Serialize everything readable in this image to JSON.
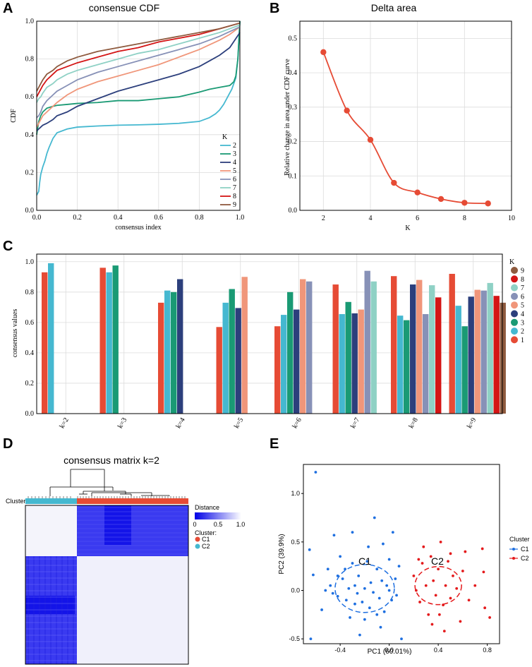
{
  "panels": {
    "a": "A",
    "b": "B",
    "c": "C",
    "d": "D",
    "e": "E"
  },
  "colors": {
    "k2": "#45b8d0",
    "k3": "#1a9a74",
    "k4": "#2c3f7c",
    "k5": "#f0967a",
    "k6": "#8791b7",
    "k7": "#8fd1c5",
    "k8": "#d41515",
    "k9": "#8e5a3e",
    "orange": "#e64b35",
    "c1": "#1e6fe0",
    "c2": "#e41a1c",
    "heat": "#1414e8"
  },
  "chart_data": [
    {
      "id": "cdf",
      "type": "line",
      "title": "consensue CDF",
      "xlabel": "consensus index",
      "ylabel": "CDF",
      "xlim": [
        0,
        1
      ],
      "ylim": [
        0,
        1
      ],
      "xticks": [
        "0.0",
        "0.2",
        "0.4",
        "0.6",
        "0.8",
        "1.0"
      ],
      "yticks": [
        "0.0",
        "0.2",
        "0.4",
        "0.6",
        "0.8",
        "1.0"
      ],
      "legend_title": "K",
      "series": [
        {
          "name": "2",
          "x": [
            0,
            0.005,
            0.01,
            0.015,
            0.02,
            0.03,
            0.04,
            0.05,
            0.06,
            0.08,
            0.1,
            0.15,
            0.2,
            0.3,
            0.4,
            0.5,
            0.6,
            0.7,
            0.8,
            0.85,
            0.88,
            0.9,
            0.92,
            0.94,
            0.95,
            0.96,
            0.97,
            0.98,
            0.99,
            1.0
          ],
          "y": [
            0.08,
            0.09,
            0.1,
            0.15,
            0.19,
            0.23,
            0.26,
            0.3,
            0.33,
            0.38,
            0.41,
            0.43,
            0.44,
            0.446,
            0.45,
            0.452,
            0.455,
            0.46,
            0.47,
            0.49,
            0.51,
            0.53,
            0.56,
            0.6,
            0.62,
            0.64,
            0.67,
            0.7,
            0.8,
            1.0
          ]
        },
        {
          "name": "3",
          "x": [
            0,
            0.01,
            0.02,
            0.03,
            0.05,
            0.08,
            0.1,
            0.15,
            0.2,
            0.3,
            0.4,
            0.5,
            0.6,
            0.7,
            0.8,
            0.85,
            0.9,
            0.95,
            0.97,
            0.98,
            0.99,
            1.0
          ],
          "y": [
            0.4,
            0.47,
            0.5,
            0.52,
            0.54,
            0.55,
            0.555,
            0.56,
            0.565,
            0.57,
            0.58,
            0.58,
            0.59,
            0.6,
            0.625,
            0.64,
            0.65,
            0.66,
            0.68,
            0.71,
            0.8,
            1.0
          ]
        },
        {
          "name": "4",
          "x": [
            0,
            0.01,
            0.02,
            0.03,
            0.05,
            0.08,
            0.1,
            0.15,
            0.2,
            0.3,
            0.4,
            0.5,
            0.6,
            0.7,
            0.8,
            0.85,
            0.9,
            0.95,
            1.0
          ],
          "y": [
            0.42,
            0.43,
            0.44,
            0.45,
            0.46,
            0.48,
            0.5,
            0.52,
            0.55,
            0.59,
            0.63,
            0.66,
            0.69,
            0.72,
            0.76,
            0.79,
            0.82,
            0.86,
            0.94
          ]
        },
        {
          "name": "5",
          "x": [
            0,
            0.01,
            0.02,
            0.03,
            0.05,
            0.08,
            0.1,
            0.15,
            0.2,
            0.3,
            0.4,
            0.5,
            0.6,
            0.7,
            0.8,
            0.9,
            0.95,
            1.0
          ],
          "y": [
            0.44,
            0.46,
            0.48,
            0.5,
            0.52,
            0.55,
            0.57,
            0.61,
            0.64,
            0.68,
            0.71,
            0.74,
            0.77,
            0.81,
            0.85,
            0.9,
            0.93,
            0.97
          ]
        },
        {
          "name": "6",
          "x": [
            0,
            0.01,
            0.02,
            0.03,
            0.05,
            0.08,
            0.1,
            0.15,
            0.2,
            0.3,
            0.4,
            0.5,
            0.6,
            0.7,
            0.8,
            0.9,
            1.0
          ],
          "y": [
            0.49,
            0.5,
            0.52,
            0.55,
            0.58,
            0.61,
            0.63,
            0.66,
            0.69,
            0.73,
            0.76,
            0.79,
            0.82,
            0.85,
            0.88,
            0.92,
            0.97
          ]
        },
        {
          "name": "7",
          "x": [
            0,
            0.01,
            0.02,
            0.03,
            0.05,
            0.08,
            0.1,
            0.15,
            0.2,
            0.3,
            0.4,
            0.5,
            0.6,
            0.7,
            0.8,
            0.9,
            1.0
          ],
          "y": [
            0.57,
            0.59,
            0.6,
            0.62,
            0.65,
            0.67,
            0.69,
            0.72,
            0.74,
            0.77,
            0.8,
            0.83,
            0.85,
            0.88,
            0.91,
            0.94,
            0.98
          ]
        },
        {
          "name": "8",
          "x": [
            0,
            0.01,
            0.02,
            0.03,
            0.05,
            0.08,
            0.1,
            0.15,
            0.2,
            0.3,
            0.4,
            0.5,
            0.6,
            0.7,
            0.8,
            0.9,
            1.0
          ],
          "y": [
            0.6,
            0.62,
            0.64,
            0.66,
            0.69,
            0.72,
            0.74,
            0.76,
            0.78,
            0.81,
            0.84,
            0.86,
            0.89,
            0.91,
            0.93,
            0.96,
            0.99
          ]
        },
        {
          "name": "9",
          "x": [
            0,
            0.01,
            0.02,
            0.03,
            0.05,
            0.08,
            0.1,
            0.15,
            0.2,
            0.3,
            0.4,
            0.5,
            0.6,
            0.7,
            0.8,
            0.9,
            1.0
          ],
          "y": [
            0.63,
            0.65,
            0.67,
            0.69,
            0.72,
            0.74,
            0.76,
            0.79,
            0.81,
            0.84,
            0.86,
            0.88,
            0.9,
            0.92,
            0.94,
            0.96,
            0.99
          ]
        }
      ]
    },
    {
      "id": "delta",
      "type": "line",
      "title": "Delta area",
      "xlabel": "K",
      "ylabel": "Relative change in area under CDF curve",
      "xlim": [
        1,
        10
      ],
      "ylim": [
        0,
        0.55
      ],
      "xticks": [
        "2",
        "4",
        "6",
        "8",
        "10"
      ],
      "yticks": [
        "0.0",
        "0.1",
        "0.2",
        "0.3",
        "0.4",
        "0.5"
      ],
      "x": [
        2,
        3,
        4,
        5,
        6,
        7,
        8,
        9
      ],
      "values": [
        0.46,
        0.29,
        0.205,
        0.08,
        0.052,
        0.033,
        0.022,
        0.02
      ]
    },
    {
      "id": "consensus",
      "type": "bar",
      "xlabel": "",
      "ylabel": "consensus values",
      "ylim": [
        0,
        1.05
      ],
      "yticks": [
        "0.0",
        "0.2",
        "0.4",
        "0.6",
        "0.8",
        "1.0"
      ],
      "categories": [
        "k=2",
        "k=3",
        "k=4",
        "k=5",
        "k=6",
        "k=7",
        "k=8",
        "k=9"
      ],
      "groups": [
        [
          0.93,
          0.99
        ],
        [
          0.96,
          0.93,
          0.975
        ],
        [
          0.73,
          0.81,
          0.8,
          0.885
        ],
        [
          0.57,
          0.73,
          0.82,
          0.695,
          0.9
        ],
        [
          0.575,
          0.65,
          0.8,
          0.685,
          0.885,
          0.87
        ],
        [
          0.85,
          0.655,
          0.735,
          0.66,
          0.685,
          0.94,
          0.87
        ],
        [
          0.905,
          0.645,
          0.615,
          0.85,
          0.88,
          0.655,
          0.845,
          0.765
        ],
        [
          0.92,
          0.71,
          0.575,
          0.77,
          0.815,
          0.81,
          0.86,
          0.775,
          0.73
        ]
      ],
      "legend_title": "K",
      "legend": [
        "9",
        "8",
        "7",
        "6",
        "5",
        "4",
        "3",
        "2",
        "1"
      ]
    },
    {
      "id": "matrix",
      "type": "heatmap",
      "title": "consensus matrix k=2",
      "row_label": "Cluster",
      "legend_distance": "Distance",
      "distance_ticks": [
        "0",
        "0.5",
        "1.0"
      ],
      "legend_cluster": "Cluster:",
      "clusters": [
        "C1",
        "C2"
      ]
    },
    {
      "id": "pca",
      "type": "scatter",
      "xlabel": "PC1   (60.01%)",
      "ylabel": "PC2   (39.9%)",
      "xlim": [
        -0.7,
        0.9
      ],
      "ylim": [
        -0.55,
        1.3
      ],
      "xticks": [
        "-0.4",
        "0.0",
        "0.4",
        "0.8"
      ],
      "yticks": [
        "-0.5",
        "0.0",
        "0.5",
        "1.0"
      ],
      "legend_title": "Cluster",
      "labels": [
        "C1",
        "C2"
      ],
      "series": [
        {
          "name": "C1",
          "points": [
            [
              -0.6,
              1.22
            ],
            [
              -0.65,
              0.42
            ],
            [
              -0.62,
              0.16
            ],
            [
              -0.55,
              -0.2
            ],
            [
              -0.45,
              0.57
            ],
            [
              -0.5,
              0.22
            ],
            [
              -0.48,
              0.05
            ],
            [
              -0.46,
              -0.03
            ],
            [
              -0.42,
              -0.06
            ],
            [
              -0.4,
              0.35
            ],
            [
              -0.38,
              0.12
            ],
            [
              -0.35,
              -0.1
            ],
            [
              -0.33,
              0.02
            ],
            [
              -0.3,
              0.28
            ],
            [
              -0.32,
              -0.28
            ],
            [
              -0.28,
              0.05
            ],
            [
              -0.26,
              -0.03
            ],
            [
              -0.25,
              0.15
            ],
            [
              -0.22,
              -0.12
            ],
            [
              -0.2,
              0.02
            ],
            [
              -0.18,
              0.3
            ],
            [
              -0.16,
              -0.18
            ],
            [
              -0.15,
              0.08
            ],
            [
              -0.12,
              0.75
            ],
            [
              -0.13,
              -0.02
            ],
            [
              -0.1,
              0.22
            ],
            [
              -0.08,
              -0.08
            ],
            [
              -0.06,
              0.1
            ],
            [
              -0.05,
              0.48
            ],
            [
              -0.04,
              -0.22
            ],
            [
              -0.02,
              0.05
            ],
            [
              0.0,
              0.32
            ],
            [
              0.02,
              -0.1
            ],
            [
              0.03,
              0.6
            ],
            [
              0.05,
              0.12
            ],
            [
              0.06,
              -0.05
            ],
            [
              -0.64,
              -0.5
            ],
            [
              -0.24,
              -0.46
            ],
            [
              -0.3,
              0.6
            ],
            [
              0.1,
              -0.5
            ],
            [
              -0.36,
              0.22
            ],
            [
              -0.2,
              -0.3
            ],
            [
              0.0,
              0.0
            ],
            [
              -0.1,
              -0.25
            ],
            [
              0.08,
              0.25
            ],
            [
              -0.42,
              0.15
            ],
            [
              -0.52,
              0.0
            ],
            [
              -0.17,
              0.45
            ],
            [
              -0.28,
              -0.14
            ],
            [
              -0.07,
              -0.38
            ]
          ]
        },
        {
          "name": "C2",
          "points": [
            [
              0.2,
              0.15
            ],
            [
              0.22,
              0.0
            ],
            [
              0.25,
              -0.12
            ],
            [
              0.27,
              0.28
            ],
            [
              0.3,
              0.05
            ],
            [
              0.32,
              -0.25
            ],
            [
              0.34,
              0.35
            ],
            [
              0.36,
              0.1
            ],
            [
              0.38,
              -0.05
            ],
            [
              0.4,
              0.22
            ],
            [
              0.42,
              0.5
            ],
            [
              0.44,
              -0.15
            ],
            [
              0.46,
              0.05
            ],
            [
              0.48,
              0.3
            ],
            [
              0.5,
              -0.08
            ],
            [
              0.52,
              0.15
            ],
            [
              0.55,
              0.02
            ],
            [
              0.58,
              -0.32
            ],
            [
              0.6,
              0.2
            ],
            [
              0.62,
              0.4
            ],
            [
              0.65,
              -0.1
            ],
            [
              0.7,
              0.05
            ],
            [
              0.76,
              0.43
            ],
            [
              0.77,
              0.19
            ],
            [
              0.78,
              -0.18
            ],
            [
              0.82,
              -0.28
            ],
            [
              0.45,
              -0.42
            ],
            [
              0.28,
              0.45
            ],
            [
              0.35,
              -0.35
            ],
            [
              0.5,
              0.38
            ],
            [
              0.24,
              0.32
            ],
            [
              0.41,
              -0.25
            ]
          ]
        }
      ]
    }
  ]
}
